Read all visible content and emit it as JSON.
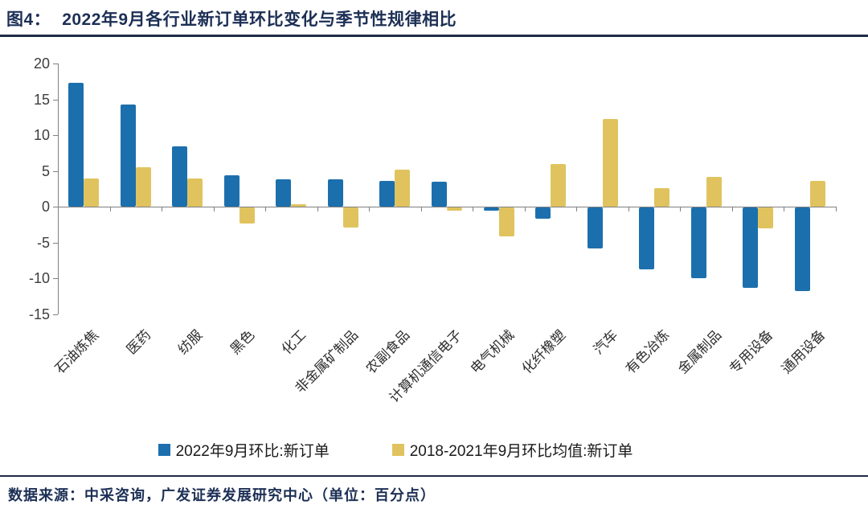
{
  "header": {
    "figure_label": "图4：",
    "title": "2022年9月各行业新订单环比变化与季节性规律相比"
  },
  "chart_data": {
    "type": "bar",
    "title": "2022年9月各行业新订单环比变化与季节性规律相比",
    "categories": [
      "石油炼焦",
      "医药",
      "纺服",
      "黑色",
      "化工",
      "非金属矿制品",
      "农副食品",
      "计算机通信电子",
      "电气机械",
      "化纤橡塑",
      "汽车",
      "有色冶炼",
      "金属制品",
      "专用设备",
      "通用设备"
    ],
    "series": [
      {
        "name": "2022年9月环比:新订单",
        "color": "#1c6fad",
        "values": [
          17.3,
          14.3,
          8.4,
          4.4,
          3.8,
          3.8,
          3.6,
          3.5,
          -0.5,
          -1.6,
          -5.7,
          -8.7,
          -9.9,
          -11.2,
          -11.7
        ]
      },
      {
        "name": "2018-2021年9月环比均值:新订单",
        "color": "#e0c35e",
        "values": [
          3.9,
          5.5,
          3.9,
          -2.2,
          0.3,
          -2.8,
          5.2,
          -0.5,
          -4.0,
          6.0,
          12.3,
          2.6,
          4.2,
          -2.9,
          3.6
        ]
      }
    ],
    "xlabel": "",
    "ylabel": "",
    "ylim": [
      -15,
      20
    ],
    "yticks": [
      20,
      15,
      10,
      5,
      0,
      -5,
      -10,
      -15
    ],
    "grid": false,
    "legend_position": "bottom",
    "unit": "百分点"
  },
  "footer": {
    "source": "数据来源：中采咨询，广发证券发展研究中心（单位：百分点）"
  },
  "colors": {
    "title_text": "#1c2f55",
    "divider": "#1f2a44",
    "axis": "#808080"
  }
}
